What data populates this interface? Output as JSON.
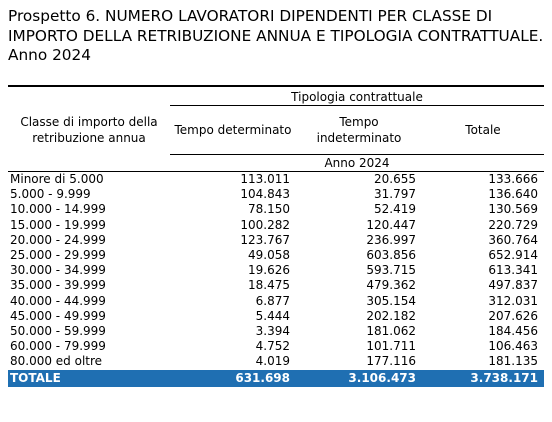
{
  "title": "Prospetto 6. NUMERO LAVORATORI DIPENDENTI PER CLASSE DI IMPORTO DELLA RETRIBUZIONE ANNUA E TIPOLOGIA CONTRATTUALE. Anno 2024",
  "header": {
    "group_label": "Tipologia contrattuale",
    "row_header": "Classe di importo della retribuzione annua",
    "col_tempo_det": "Tempo determinato",
    "col_tempo_indet": "Tempo indeterminato",
    "col_totale": "Totale",
    "year_label": "Anno 2024"
  },
  "rows": [
    {
      "label": "Minore di 5.000",
      "det": "113.011",
      "indet": "20.655",
      "tot": "133.666"
    },
    {
      "label": "5.000 - 9.999",
      "det": "104.843",
      "indet": "31.797",
      "tot": "136.640"
    },
    {
      "label": "10.000 - 14.999",
      "det": "78.150",
      "indet": "52.419",
      "tot": "130.569"
    },
    {
      "label": "15.000 - 19.999",
      "det": "100.282",
      "indet": "120.447",
      "tot": "220.729"
    },
    {
      "label": "20.000 - 24.999",
      "det": "123.767",
      "indet": "236.997",
      "tot": "360.764"
    },
    {
      "label": "25.000 - 29.999",
      "det": "49.058",
      "indet": "603.856",
      "tot": "652.914"
    },
    {
      "label": "30.000 - 34.999",
      "det": "19.626",
      "indet": "593.715",
      "tot": "613.341"
    },
    {
      "label": "35.000 - 39.999",
      "det": "18.475",
      "indet": "479.362",
      "tot": "497.837"
    },
    {
      "label": "40.000 - 44.999",
      "det": "6.877",
      "indet": "305.154",
      "tot": "312.031"
    },
    {
      "label": "45.000 - 49.999",
      "det": "5.444",
      "indet": "202.182",
      "tot": "207.626"
    },
    {
      "label": "50.000 - 59.999",
      "det": "3.394",
      "indet": "181.062",
      "tot": "184.456"
    },
    {
      "label": "60.000 - 79.999",
      "det": "4.752",
      "indet": "101.711",
      "tot": "106.463"
    },
    {
      "label": "80.000 ed oltre",
      "det": "4.019",
      "indet": "177.116",
      "tot": "181.135"
    }
  ],
  "total": {
    "label": "TOTALE",
    "det": "631.698",
    "indet": "3.106.473",
    "tot": "3.738.171"
  },
  "colors": {
    "total_row_bg": "#1f6fb2",
    "total_row_text": "#ffffff"
  }
}
